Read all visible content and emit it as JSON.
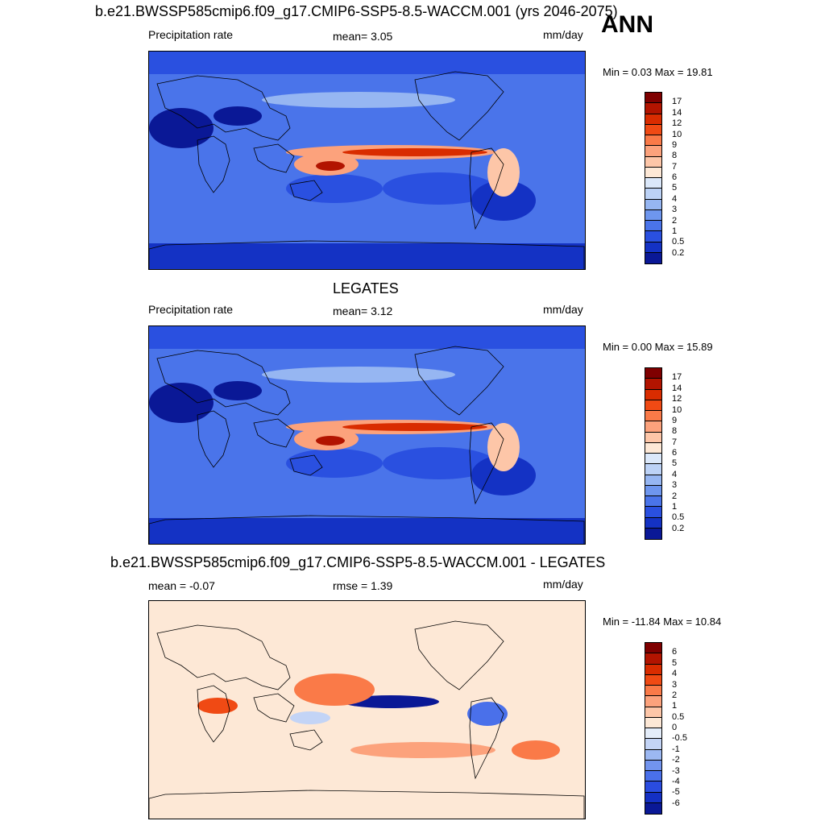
{
  "season": "ANN",
  "panels": [
    {
      "title": "b.e21.BWSSP585cmip6.f09_g17.CMIP6-SSP5-8.5-WACCM.001 (yrs 2046-2075)",
      "left_label": "Precipitation rate",
      "center_label": "mean=   3.05",
      "units": "mm/day",
      "minmax": "Min =   0.03 Max =  19.81",
      "kind": "model"
    },
    {
      "title": "LEGATES",
      "left_label": "Precipitation rate",
      "center_label": "mean=   3.12",
      "units": "mm/day",
      "minmax": "Min =   0.00 Max =  15.89",
      "kind": "obs"
    },
    {
      "title": "b.e21.BWSSP585cmip6.f09_g17.CMIP6-SSP5-8.5-WACCM.001 - LEGATES",
      "left_label": "mean =  -0.07",
      "center_label": "rmse =   1.39",
      "units": "mm/day",
      "minmax": "Min = -11.84 Max =  10.84",
      "kind": "diff"
    }
  ],
  "colorbar_abs": {
    "labels": [
      "17",
      "14",
      "12",
      "10",
      "9",
      "8",
      "7",
      "6",
      "5",
      "4",
      "3",
      "2",
      "1",
      "0.5",
      "0.2"
    ],
    "colors": [
      "#7f0000",
      "#b21400",
      "#d92c00",
      "#f04a14",
      "#fa7a48",
      "#fca27c",
      "#fdc6a8",
      "#fde8d6",
      "#dbe8fa",
      "#bcd2f6",
      "#96b6f2",
      "#6e96ee",
      "#4a74ea",
      "#2a50e0",
      "#1432c4",
      "#0a1896"
    ]
  },
  "colorbar_diff": {
    "labels": [
      "6",
      "5",
      "4",
      "3",
      "2",
      "1",
      "0.5",
      "0",
      "-0.5",
      "-1",
      "-2",
      "-3",
      "-4",
      "-5",
      "-6"
    ],
    "colors": [
      "#7f0000",
      "#b21400",
      "#d92c00",
      "#f04a14",
      "#fa7a48",
      "#fca27c",
      "#fdc6a8",
      "#fde8d6",
      "#e4edfa",
      "#c3d4f6",
      "#9cb8f2",
      "#7294ee",
      "#4a70ea",
      "#2a4ce0",
      "#1430c4",
      "#0a1896"
    ]
  }
}
